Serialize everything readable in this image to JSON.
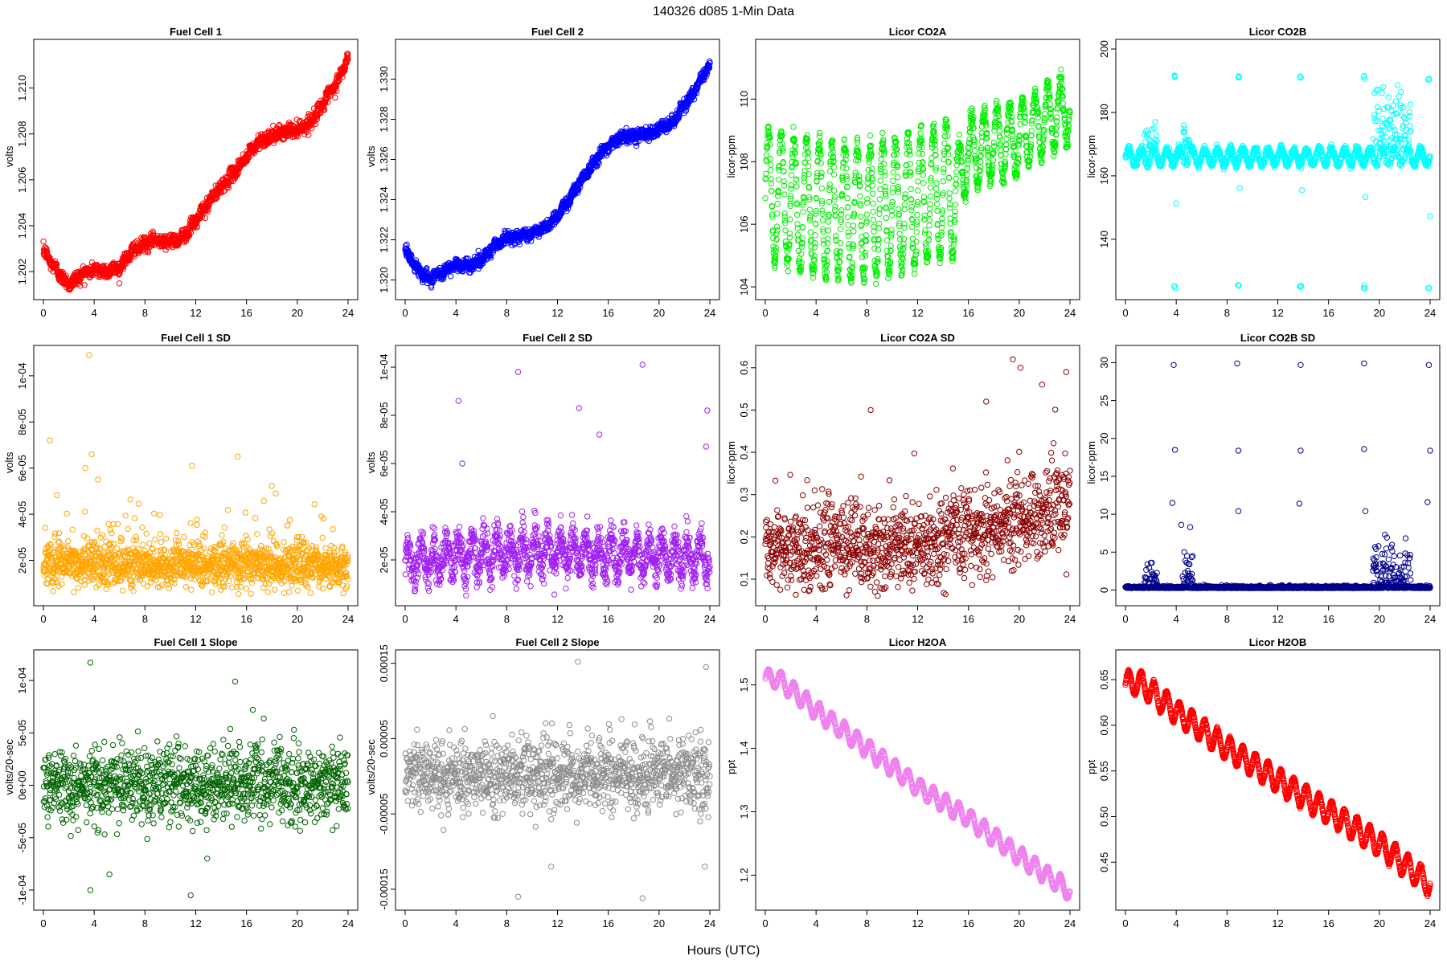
{
  "figure": {
    "title": "140326    d085    1-Min Data",
    "xlabel": "Hours (UTC)"
  },
  "chart_data": [
    {
      "type": "scatter",
      "title": "Fuel Cell 1",
      "ylabel": "volts",
      "color": "#ff0000",
      "xlim": [
        0,
        24
      ],
      "ylim": [
        1.2012,
        1.2117
      ],
      "xticks": [
        0,
        4,
        8,
        12,
        16,
        20,
        24
      ],
      "xticklabels": [
        "0",
        "4",
        "8",
        "12",
        "16",
        "20",
        "24"
      ],
      "yticks": [
        1.202,
        1.204,
        1.206,
        1.208,
        1.21
      ],
      "yticklabels": [
        "1.202",
        "1.204",
        "1.206",
        "1.208",
        "1.210"
      ],
      "trend": [
        [
          0,
          1.2029
        ],
        [
          1,
          1.2021
        ],
        [
          2,
          1.2014
        ],
        [
          3,
          1.2019
        ],
        [
          4,
          1.2021
        ],
        [
          5,
          1.202
        ],
        [
          6,
          1.2022
        ],
        [
          7,
          1.2029
        ],
        [
          8,
          1.2032
        ],
        [
          9,
          1.2034
        ],
        [
          10,
          1.2033
        ],
        [
          11,
          1.2035
        ],
        [
          12,
          1.2042
        ],
        [
          13,
          1.205
        ],
        [
          14,
          1.2057
        ],
        [
          15,
          1.2063
        ],
        [
          16,
          1.207
        ],
        [
          17,
          1.2077
        ],
        [
          18,
          1.2079
        ],
        [
          19,
          1.2081
        ],
        [
          20,
          1.2082
        ],
        [
          21,
          1.2085
        ],
        [
          22,
          1.2093
        ],
        [
          23,
          1.2101
        ],
        [
          24,
          1.2113
        ]
      ],
      "pattern": "trend",
      "points_per_hour": 60,
      "noise": 0.00015,
      "ripple": 8e-05
    },
    {
      "type": "scatter",
      "title": "Fuel Cell 2",
      "ylabel": "volts",
      "color": "#0000ff",
      "xlim": [
        0,
        24
      ],
      "ylim": [
        1.3195,
        1.3315
      ],
      "xticks": [
        0,
        4,
        8,
        12,
        16,
        20,
        24
      ],
      "xticklabels": [
        "0",
        "4",
        "8",
        "12",
        "16",
        "20",
        "24"
      ],
      "yticks": [
        1.32,
        1.322,
        1.324,
        1.326,
        1.328,
        1.33
      ],
      "yticklabels": [
        "1.320",
        "1.322",
        "1.324",
        "1.326",
        "1.328",
        "1.330"
      ],
      "trend": [
        [
          0,
          1.3215
        ],
        [
          1,
          1.3205
        ],
        [
          2,
          1.32
        ],
        [
          3,
          1.3204
        ],
        [
          4,
          1.3208
        ],
        [
          5,
          1.3207
        ],
        [
          6,
          1.321
        ],
        [
          7,
          1.3217
        ],
        [
          8,
          1.3221
        ],
        [
          9,
          1.3222
        ],
        [
          10,
          1.3223
        ],
        [
          11,
          1.3226
        ],
        [
          12,
          1.3232
        ],
        [
          13,
          1.3241
        ],
        [
          14,
          1.3251
        ],
        [
          15,
          1.326
        ],
        [
          16,
          1.3267
        ],
        [
          17,
          1.3271
        ],
        [
          18,
          1.3272
        ],
        [
          19,
          1.3273
        ],
        [
          20,
          1.3275
        ],
        [
          21,
          1.3278
        ],
        [
          22,
          1.3287
        ],
        [
          23,
          1.3296
        ],
        [
          24,
          1.3308
        ]
      ],
      "pattern": "trend",
      "points_per_hour": 60,
      "noise": 0.00015,
      "ripple": 8e-05
    },
    {
      "type": "scatter",
      "title": "Licor CO2A",
      "ylabel": "licor-ppm",
      "color": "#00ee00",
      "xlim": [
        0,
        24
      ],
      "ylim": [
        103.9,
        111.6
      ],
      "xticks": [
        0,
        4,
        8,
        12,
        16,
        20,
        24
      ],
      "xticklabels": [
        "0",
        "4",
        "8",
        "12",
        "16",
        "20",
        "24"
      ],
      "yticks": [
        104,
        106,
        108,
        110
      ],
      "yticklabels": [
        "104",
        "106",
        "108",
        "110"
      ],
      "trend": [
        [
          0,
          107.0
        ],
        [
          4,
          106.5
        ],
        [
          8,
          106.4
        ],
        [
          12,
          106.8
        ],
        [
          15,
          107.2
        ],
        [
          16,
          108.3
        ],
        [
          20,
          108.8
        ],
        [
          24,
          109.8
        ]
      ],
      "pattern": "oscillate",
      "period_hours": 1.0,
      "amplitude": 2.1,
      "amplitude_late": 1.1,
      "points_per_hour": 60,
      "noise": 0.15
    },
    {
      "type": "scatter",
      "title": "Licor CO2B",
      "ylabel": "licor-ppm",
      "color": "#00ffff",
      "xlim": [
        0,
        24
      ],
      "ylim": [
        124,
        200
      ],
      "xticks": [
        0,
        4,
        8,
        12,
        16,
        20,
        24
      ],
      "xticklabels": [
        "0",
        "4",
        "8",
        "12",
        "16",
        "20",
        "24"
      ],
      "yticks": [
        140,
        160,
        180,
        200
      ],
      "yticklabels": [
        "140",
        "160",
        "180",
        "200"
      ],
      "trend": [
        [
          0,
          166
        ],
        [
          24,
          166
        ]
      ],
      "pattern": "base_spikes",
      "period_hours": 1.0,
      "amplitude": 2.5,
      "points_per_hour": 60,
      "noise": 0.6,
      "spike_hours": [
        3.9,
        8.9,
        13.8,
        18.8,
        23.9
      ],
      "spike_high": 191,
      "spike_low": 125,
      "burst_ranges": [
        [
          1.5,
          2.5,
          8
        ],
        [
          4.5,
          5.3,
          6
        ],
        [
          19.5,
          22.5,
          14
        ]
      ]
    },
    {
      "type": "scatter",
      "title": "Fuel Cell 1 SD",
      "ylabel": "volts",
      "color": "#ffa500",
      "xlim": [
        0,
        24
      ],
      "ylim": [
        4.5e-06,
        0.000109
      ],
      "xticks": [
        0,
        4,
        8,
        12,
        16,
        20,
        24
      ],
      "xticklabels": [
        "0",
        "4",
        "8",
        "12",
        "16",
        "20",
        "24"
      ],
      "yticks": [
        2e-05,
        4e-05,
        6e-05,
        8e-05,
        0.0001
      ],
      "yticklabels": [
        "2e-05",
        "4e-05",
        "6e-05",
        "8e-05",
        "1e-04"
      ],
      "trend": [
        [
          0,
          1.8e-05
        ],
        [
          24,
          1.7e-05
        ]
      ],
      "pattern": "skew_noise",
      "points_per_hour": 60,
      "noise": 4.5e-06,
      "tail": 1.2e-05,
      "outliers": [
        [
          3.6,
          0.000109
        ],
        [
          0.5,
          7.2e-05
        ],
        [
          3.8,
          6.6e-05
        ],
        [
          15.3,
          6.5e-05
        ],
        [
          11.7,
          6.1e-05
        ],
        [
          3.3,
          6e-05
        ],
        [
          4.3,
          5.5e-05
        ]
      ]
    },
    {
      "type": "scatter",
      "title": "Fuel Cell 2 SD",
      "ylabel": "volts",
      "color": "#a020f0",
      "xlim": [
        0,
        24
      ],
      "ylim": [
        5e-06,
        0.000105
      ],
      "xticks": [
        0,
        4,
        8,
        12,
        16,
        20,
        24
      ],
      "xticklabels": [
        "0",
        "4",
        "8",
        "12",
        "16",
        "20",
        "24"
      ],
      "yticks": [
        2e-05,
        4e-05,
        6e-05,
        8e-05,
        0.0001
      ],
      "yticklabels": [
        "2e-05",
        "4e-05",
        "6e-05",
        "8e-05",
        "1e-04"
      ],
      "trend": [
        [
          0,
          1.8e-05
        ],
        [
          4,
          2.2e-05
        ],
        [
          8,
          2.3e-05
        ],
        [
          12,
          2.4e-05
        ],
        [
          16,
          2.2e-05
        ],
        [
          24,
          2.1e-05
        ]
      ],
      "pattern": "osc_noise",
      "period_hours": 1.0,
      "amplitude": 7e-06,
      "points_per_hour": 60,
      "noise": 4e-06,
      "outliers": [
        [
          8.9,
          9.8e-05
        ],
        [
          18.7,
          0.000101
        ],
        [
          4.2,
          8.6e-05
        ],
        [
          13.7,
          8.3e-05
        ],
        [
          23.8,
          8.2e-05
        ],
        [
          15.3,
          7.2e-05
        ],
        [
          23.7,
          6.7e-05
        ],
        [
          4.5,
          6e-05
        ]
      ]
    },
    {
      "type": "scatter",
      "title": "Licor CO2A SD",
      "ylabel": "licor-ppm",
      "color": "#8b0000",
      "xlim": [
        0,
        24
      ],
      "ylim": [
        0.06,
        0.63
      ],
      "xticks": [
        0,
        4,
        8,
        12,
        16,
        20,
        24
      ],
      "xticklabels": [
        "0",
        "4",
        "8",
        "12",
        "16",
        "20",
        "24"
      ],
      "yticks": [
        0.1,
        0.2,
        0.3,
        0.4,
        0.5,
        0.6
      ],
      "yticklabels": [
        "0.1",
        "0.2",
        "0.3",
        "0.4",
        "0.5",
        "0.6"
      ],
      "trend": [
        [
          0,
          0.17
        ],
        [
          12,
          0.17
        ],
        [
          18,
          0.22
        ],
        [
          24,
          0.28
        ]
      ],
      "pattern": "skew_noise",
      "points_per_hour": 50,
      "noise": 0.05,
      "tail": 0.06,
      "outliers": [
        [
          19.5,
          0.62
        ],
        [
          20.1,
          0.6
        ],
        [
          23.7,
          0.59
        ],
        [
          8.3,
          0.5
        ],
        [
          17.4,
          0.52
        ],
        [
          21.8,
          0.56
        ]
      ]
    },
    {
      "type": "scatter",
      "title": "Licor CO2B SD",
      "ylabel": "licor-ppm",
      "color": "#00008b",
      "xlim": [
        0,
        24
      ],
      "ylim": [
        -0.8,
        31
      ],
      "xticks": [
        0,
        4,
        8,
        12,
        16,
        20,
        24
      ],
      "xticklabels": [
        "0",
        "4",
        "8",
        "12",
        "16",
        "20",
        "24"
      ],
      "yticks": [
        0,
        5,
        10,
        15,
        20,
        25,
        30
      ],
      "yticklabels": [
        "0",
        "5",
        "10",
        "15",
        "20",
        "25",
        "30"
      ],
      "trend": [
        [
          0,
          0.25
        ],
        [
          24,
          0.25
        ]
      ],
      "pattern": "base_spikes_sd",
      "points_per_hour": 60,
      "noise": 0.12,
      "burst_ranges": [
        [
          1.5,
          2.5,
          3.5
        ],
        [
          4.5,
          5.3,
          6
        ],
        [
          19.5,
          22.5,
          6
        ]
      ],
      "outliers": [
        [
          3.8,
          29.7
        ],
        [
          3.9,
          18.5
        ],
        [
          3.7,
          11.5
        ],
        [
          4.4,
          8.6
        ],
        [
          8.8,
          29.9
        ],
        [
          8.9,
          18.4
        ],
        [
          8.9,
          10.4
        ],
        [
          13.8,
          29.7
        ],
        [
          13.8,
          18.4
        ],
        [
          13.7,
          11.4
        ],
        [
          18.8,
          29.9
        ],
        [
          18.8,
          18.6
        ],
        [
          18.9,
          10.4
        ],
        [
          23.9,
          29.7
        ],
        [
          24.0,
          18.4
        ],
        [
          23.8,
          11.6
        ]
      ]
    },
    {
      "type": "scatter",
      "title": "Fuel Cell 1 Slope",
      "ylabel": "volts/20-sec",
      "color": "#006400",
      "xlim": [
        0,
        24
      ],
      "ylim": [
        -0.00011,
        0.00012
      ],
      "xticks": [
        0,
        4,
        8,
        12,
        16,
        20,
        24
      ],
      "xticklabels": [
        "0",
        "4",
        "8",
        "12",
        "16",
        "20",
        "24"
      ],
      "yticks": [
        -0.0001,
        -5e-05,
        0,
        5e-05,
        0.0001
      ],
      "yticklabels": [
        "-1e-04",
        "-5e-05",
        "0e+00",
        "5e-05",
        "1e-04"
      ],
      "trend": [
        [
          0,
          0.0
        ],
        [
          24,
          3e-06
        ]
      ],
      "pattern": "noise",
      "points_per_hour": 50,
      "noise": 1.8e-05,
      "outliers": [
        [
          3.7,
          0.000117
        ],
        [
          15.1,
          9.9e-05
        ],
        [
          3.7,
          -0.0001
        ],
        [
          11.6,
          -0.000105
        ],
        [
          5.2,
          -8.5e-05
        ],
        [
          12.9,
          -7e-05
        ],
        [
          16.5,
          7.2e-05
        ]
      ]
    },
    {
      "type": "scatter",
      "title": "Fuel Cell 2 Slope",
      "ylabel": "volts/20-sec",
      "color": "#8c8c8c",
      "xlim": [
        0,
        24
      ],
      "ylim": [
        -0.000165,
        0.000155
      ],
      "xticks": [
        0,
        4,
        8,
        12,
        16,
        20,
        24
      ],
      "xticklabels": [
        "0",
        "4",
        "8",
        "12",
        "16",
        "20",
        "24"
      ],
      "yticks": [
        -0.00015,
        -5e-05,
        5e-05,
        0.00015
      ],
      "yticklabels": [
        "-0.00015",
        "-0.00005",
        "0.00005",
        "0.00015"
      ],
      "trend": [
        [
          0,
          0.0
        ],
        [
          24,
          5e-06
        ]
      ],
      "pattern": "noise",
      "points_per_hour": 50,
      "noise": 2.4e-05,
      "outliers": [
        [
          13.6,
          0.000152
        ],
        [
          23.7,
          0.000145
        ],
        [
          8.9,
          -0.00016
        ],
        [
          18.7,
          -0.000162
        ],
        [
          11.5,
          -0.00012
        ],
        [
          23.6,
          -0.00012
        ]
      ]
    },
    {
      "type": "scatter",
      "title": "Licor H2OA",
      "ylabel": "ppt",
      "color": "#ee82ee",
      "xlim": [
        0,
        24
      ],
      "ylim": [
        1.16,
        1.54
      ],
      "xticks": [
        0,
        4,
        8,
        12,
        16,
        20,
        24
      ],
      "xticklabels": [
        "0",
        "4",
        "8",
        "12",
        "16",
        "20",
        "24"
      ],
      "yticks": [
        1.2,
        1.3,
        1.4,
        1.5
      ],
      "yticklabels": [
        "1.2",
        "1.3",
        "1.4",
        "1.5"
      ],
      "trend": [
        [
          0,
          1.51
        ],
        [
          1,
          1.51
        ],
        [
          4,
          1.46
        ],
        [
          8,
          1.4
        ],
        [
          12,
          1.34
        ],
        [
          16,
          1.29
        ],
        [
          20,
          1.23
        ],
        [
          24,
          1.175
        ]
      ],
      "pattern": "sawtooth",
      "period_hours": 1.0,
      "amplitude": 0.014,
      "points_per_hour": 60,
      "noise": 0.001
    },
    {
      "type": "scatter",
      "title": "Licor H2OB",
      "ylabel": "ppt",
      "color": "#ff0000",
      "xlim": [
        0,
        24
      ],
      "ylim": [
        0.408,
        0.672
      ],
      "xticks": [
        0,
        4,
        8,
        12,
        16,
        20,
        24
      ],
      "xticklabels": [
        "0",
        "4",
        "8",
        "12",
        "16",
        "20",
        "24"
      ],
      "yticks": [
        0.45,
        0.5,
        0.55,
        0.6,
        0.65
      ],
      "yticklabels": [
        "0.45",
        "0.50",
        "0.55",
        "0.60",
        "0.65"
      ],
      "trend": [
        [
          0,
          0.645
        ],
        [
          1,
          0.648
        ],
        [
          4,
          0.615
        ],
        [
          8,
          0.575
        ],
        [
          12,
          0.54
        ],
        [
          16,
          0.505
        ],
        [
          20,
          0.47
        ],
        [
          24,
          0.425
        ]
      ],
      "pattern": "sawtooth",
      "period_hours": 1.0,
      "amplitude": 0.013,
      "points_per_hour": 60,
      "noise": 0.001
    }
  ]
}
